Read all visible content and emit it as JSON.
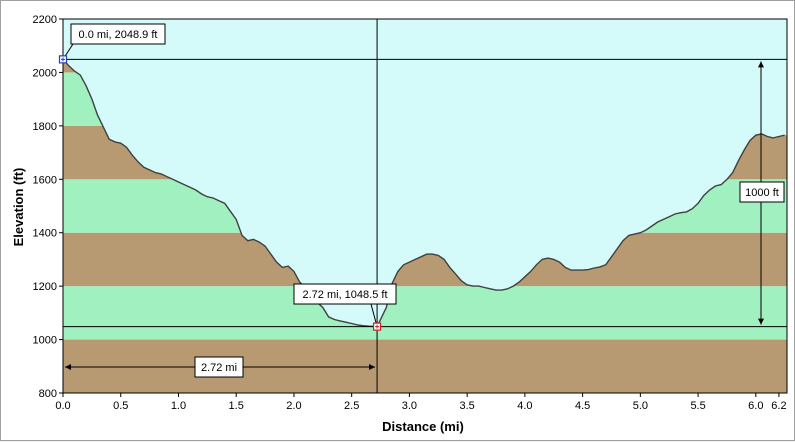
{
  "chart_data": {
    "type": "area",
    "title": "",
    "xlabel": "Distance   (mi)",
    "ylabel": "Elevation (ft)",
    "xlim": [
      0,
      6.27
    ],
    "ylim": [
      800,
      2200
    ],
    "x_ticks": [
      "0.0",
      "0.5",
      "1.0",
      "1.5",
      "2.0",
      "2.5",
      "3.0",
      "3.5",
      "4.0",
      "4.5",
      "5.0",
      "5.5",
      "6.0",
      "6.2"
    ],
    "x_tick_values": [
      0,
      0.5,
      1.0,
      1.5,
      2.0,
      2.5,
      3.0,
      3.5,
      4.0,
      4.5,
      5.0,
      5.5,
      6.0,
      6.2
    ],
    "y_ticks": [
      "800",
      "1000",
      "1200",
      "1400",
      "1600",
      "1800",
      "2000",
      "2200"
    ],
    "y_tick_values": [
      800,
      1000,
      1200,
      1400,
      1600,
      1800,
      2000,
      2200
    ],
    "band_colors": [
      "#b89a72",
      "#a0f0c0"
    ],
    "sky_color": "#d4fafa",
    "line_color": "#404040",
    "series": [
      {
        "x": [
          0.0,
          0.05,
          0.1,
          0.15,
          0.2,
          0.25,
          0.3,
          0.35,
          0.4,
          0.45,
          0.5,
          0.55,
          0.6,
          0.65,
          0.7,
          0.75,
          0.8,
          0.85,
          0.9,
          0.95,
          1.0,
          1.05,
          1.1,
          1.15,
          1.2,
          1.25,
          1.3,
          1.35,
          1.4,
          1.45,
          1.5,
          1.55,
          1.6,
          1.65,
          1.7,
          1.75,
          1.8,
          1.85,
          1.9,
          1.95,
          2.0,
          2.05,
          2.1,
          2.15,
          2.2,
          2.25,
          2.3,
          2.35,
          2.4,
          2.45,
          2.5,
          2.55,
          2.6,
          2.65,
          2.72,
          2.8,
          2.85,
          2.9,
          2.95,
          3.0,
          3.05,
          3.1,
          3.15,
          3.2,
          3.25,
          3.3,
          3.35,
          3.4,
          3.45,
          3.5,
          3.55,
          3.6,
          3.65,
          3.7,
          3.75,
          3.8,
          3.85,
          3.9,
          3.95,
          4.0,
          4.05,
          4.1,
          4.15,
          4.2,
          4.25,
          4.3,
          4.35,
          4.4,
          4.45,
          4.5,
          4.55,
          4.6,
          4.65,
          4.7,
          4.75,
          4.8,
          4.85,
          4.9,
          4.95,
          5.0,
          5.05,
          5.1,
          5.15,
          5.2,
          5.25,
          5.3,
          5.35,
          5.4,
          5.45,
          5.5,
          5.55,
          5.6,
          5.65,
          5.7,
          5.75,
          5.8,
          5.85,
          5.9,
          5.95,
          6.0,
          6.05,
          6.1,
          6.15,
          6.2,
          6.25
        ],
        "y": [
          2048.9,
          2025,
          2005,
          1990,
          1950,
          1900,
          1840,
          1795,
          1750,
          1740,
          1735,
          1720,
          1690,
          1665,
          1645,
          1635,
          1625,
          1620,
          1610,
          1600,
          1590,
          1580,
          1570,
          1560,
          1545,
          1535,
          1530,
          1520,
          1510,
          1480,
          1450,
          1390,
          1370,
          1375,
          1365,
          1350,
          1320,
          1290,
          1270,
          1275,
          1255,
          1215,
          1195,
          1170,
          1140,
          1120,
          1085,
          1075,
          1070,
          1065,
          1060,
          1055,
          1052,
          1050,
          1048.5,
          1120,
          1210,
          1255,
          1280,
          1290,
          1300,
          1310,
          1320,
          1320,
          1315,
          1300,
          1270,
          1245,
          1220,
          1205,
          1200,
          1200,
          1195,
          1190,
          1185,
          1185,
          1190,
          1200,
          1215,
          1235,
          1255,
          1280,
          1300,
          1305,
          1300,
          1290,
          1270,
          1260,
          1260,
          1260,
          1262,
          1268,
          1272,
          1280,
          1310,
          1340,
          1370,
          1390,
          1395,
          1400,
          1410,
          1425,
          1440,
          1450,
          1460,
          1470,
          1475,
          1478,
          1490,
          1510,
          1540,
          1560,
          1575,
          1580,
          1600,
          1625,
          1670,
          1710,
          1745,
          1765,
          1770,
          1760,
          1755,
          1760,
          1765
        ]
      }
    ],
    "annotations": {
      "start_label": "0.0 mi, 2048.9 ft",
      "cursor_label": "2.72 mi, 1048.5 ft",
      "distance_label": "2.72 mi",
      "gain_label": "1000 ft"
    },
    "start_point": {
      "x": 0.0,
      "y": 2048.9
    },
    "cursor_point": {
      "x": 2.72,
      "y": 1048.5
    },
    "gain_range": [
      1048.5,
      2048.9
    ]
  }
}
